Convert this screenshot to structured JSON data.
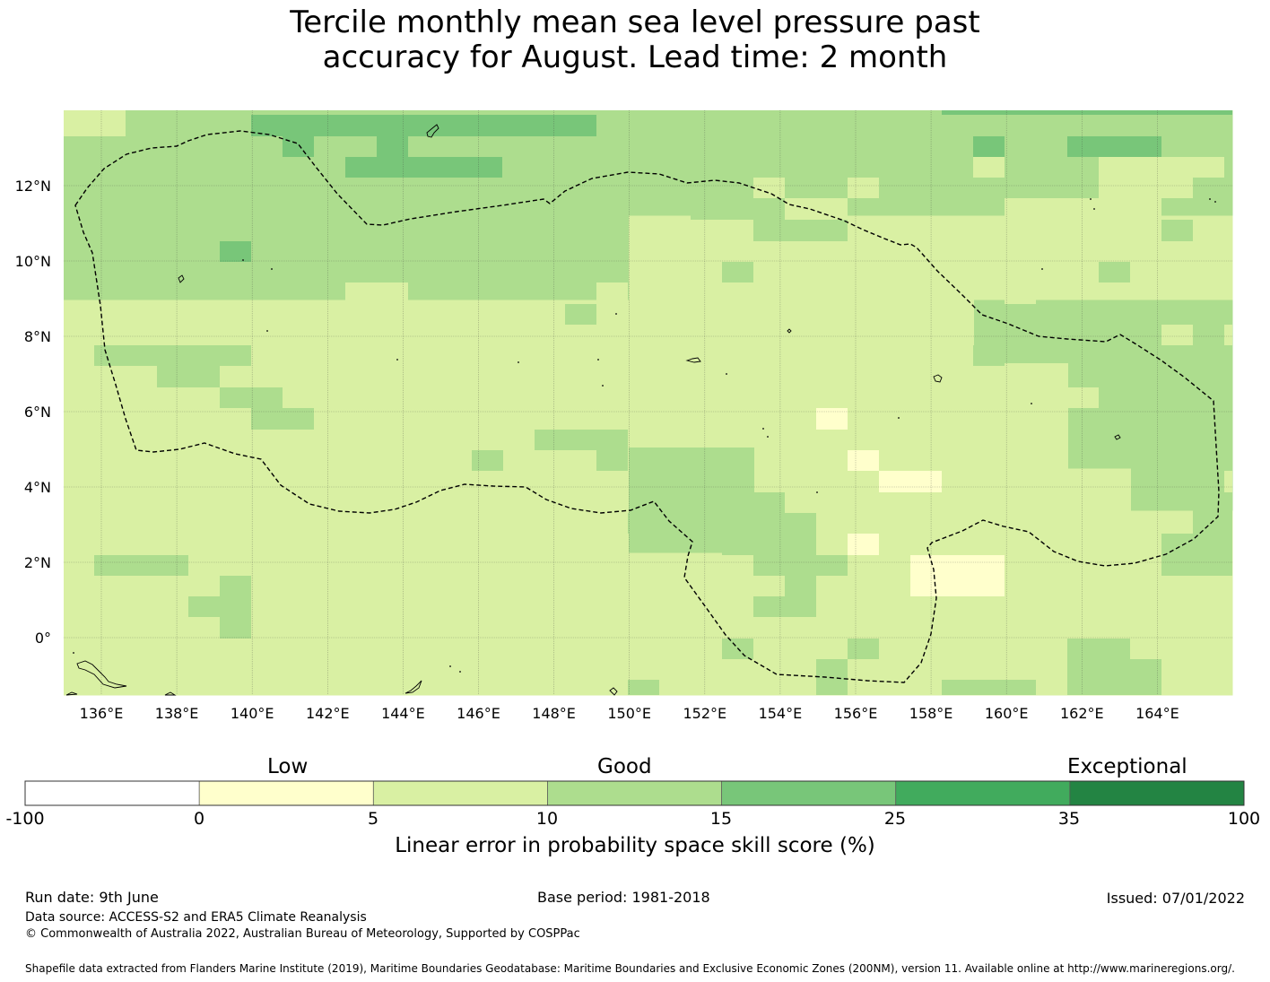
{
  "title": {
    "line1": "Tercile monthly mean sea level pressure past",
    "line2": "accuracy for August. Lead time: 2 month"
  },
  "map": {
    "lon_range": [
      135,
      166
    ],
    "lat_range": [
      -1.5,
      14
    ],
    "x_ticks": [
      "136°E",
      "138°E",
      "140°E",
      "142°E",
      "144°E",
      "146°E",
      "148°E",
      "150°E",
      "152°E",
      "154°E",
      "156°E",
      "158°E",
      "160°E",
      "162°E",
      "164°E"
    ],
    "y_ticks": [
      "12°N",
      "10°N",
      "8°N",
      "6°N",
      "4°N",
      "2°N",
      "0°"
    ],
    "grid": true,
    "eez_boundary": "dashed"
  },
  "legend": {
    "categories": [
      "Low",
      "Good",
      "Exceptional"
    ],
    "tick_labels": [
      "-100",
      "0",
      "5",
      "10",
      "15",
      "25",
      "35",
      "100"
    ],
    "colors": [
      "#ffffff",
      "#ffffcc",
      "#d9f0a3",
      "#addd8e",
      "#78c679",
      "#41ab5d",
      "#238443"
    ],
    "label": "Linear error in probability space skill score (%)"
  },
  "footer": {
    "run_date": "Run date: 9th June",
    "base_period": "Base period: 1981-2018",
    "issued": "Issued: 07/01/2022",
    "data_source": "Data source: ACCESS-S2 and ERA5 Climate Reanalysis",
    "copyright": "© Commonwealth of Australia 2022, Australian Bureau of Meteorology, Supported by COSPPac",
    "shapefile": "Shapefile data extracted from Flanders Marine Institute (2019), Maritime Boundaries Geodatabase: Maritime Boundaries and Exclusive Economic Zones (200NM), version 11. Available online at http://www.marineregions.org/."
  }
}
